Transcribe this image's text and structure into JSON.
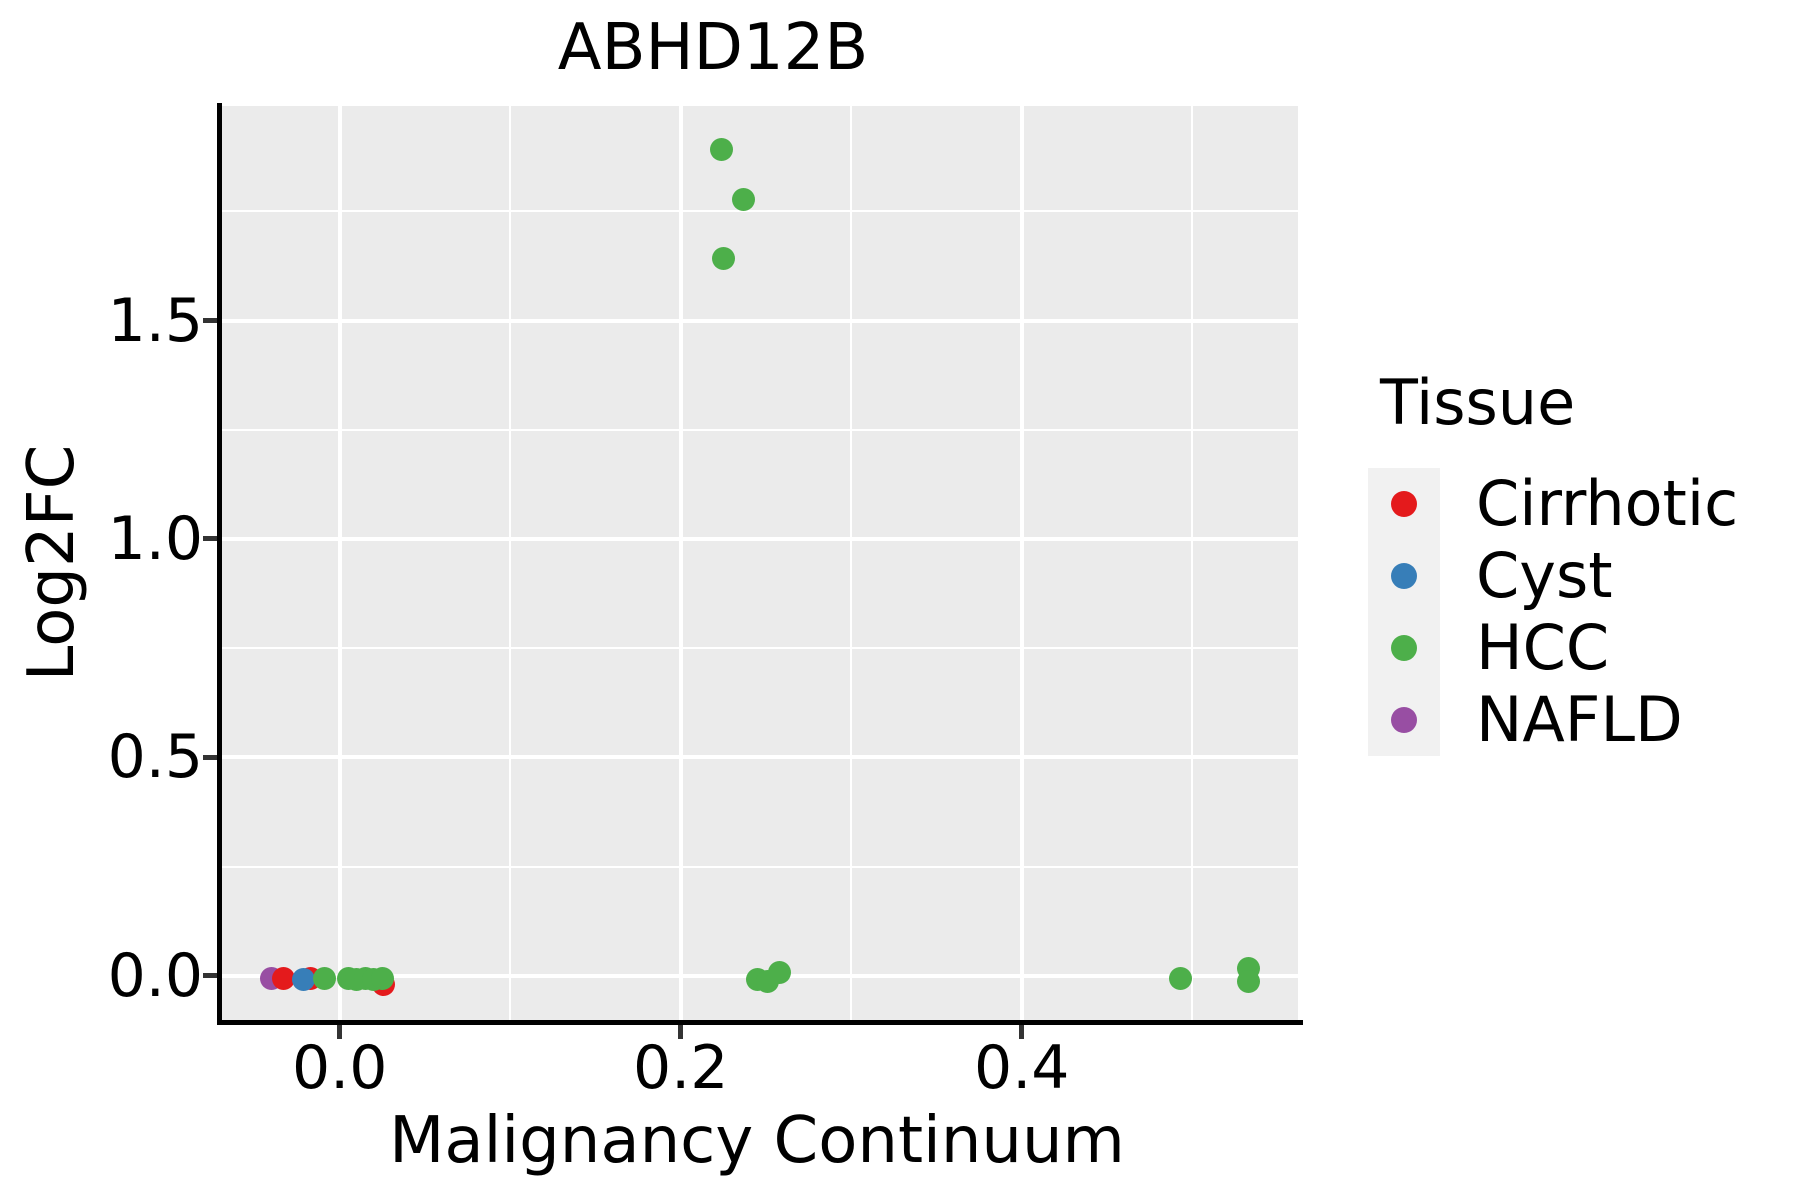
{
  "chart_data": {
    "type": "scatter",
    "title": "ABHD12B",
    "xlabel": "Malignancy Continuum",
    "ylabel": "Log2FC",
    "xlim": [
      -0.069,
      0.562
    ],
    "ylim": [
      -0.101,
      1.991
    ],
    "x_ticks": [
      0.0,
      0.2,
      0.4
    ],
    "x_tick_labels": [
      "0.0",
      "0.2",
      "0.4"
    ],
    "y_ticks": [
      0.0,
      0.5,
      1.0,
      1.5
    ],
    "y_tick_labels": [
      "0.0",
      "0.5",
      "1.0",
      "1.5"
    ],
    "x_minor": [
      0.1,
      0.3,
      0.5
    ],
    "y_minor": [
      0.25,
      0.75,
      1.25,
      1.75
    ],
    "grid": true,
    "legend_position": "right",
    "panel_background": "#EBEBEB",
    "grid_color": "#FFFFFF",
    "series": [
      {
        "name": "NAFLD",
        "color": "#984EA3",
        "points": [
          [
            -0.04,
            -0.007
          ]
        ]
      },
      {
        "name": "Cirrhotic",
        "color": "#E41A1C",
        "points": [
          [
            -0.033,
            -0.007
          ],
          [
            -0.017,
            -0.005
          ],
          [
            0.026,
            -0.02
          ]
        ]
      },
      {
        "name": "Cyst",
        "color": "#377EB8",
        "points": [
          [
            -0.021,
            -0.009
          ]
        ]
      },
      {
        "name": "HCC",
        "color": "#4DAF4A",
        "points": [
          [
            -0.009,
            -0.007
          ],
          [
            0.005,
            -0.007
          ],
          [
            0.01,
            -0.009
          ],
          [
            0.015,
            -0.007
          ],
          [
            0.02,
            -0.009
          ],
          [
            0.025,
            -0.007
          ],
          [
            0.224,
            1.892
          ],
          [
            0.225,
            1.643
          ],
          [
            0.237,
            1.776
          ],
          [
            0.245,
            -0.009
          ],
          [
            0.251,
            -0.014
          ],
          [
            0.258,
            0.007
          ],
          [
            0.493,
            -0.007
          ],
          [
            0.533,
            0.018
          ],
          [
            0.533,
            -0.014
          ]
        ]
      }
    ]
  },
  "legend": {
    "title": "Tissue",
    "entries": [
      {
        "label": "Cirrhotic",
        "color": "#E41A1C"
      },
      {
        "label": "Cyst",
        "color": "#377EB8"
      },
      {
        "label": "HCC",
        "color": "#4DAF4A"
      },
      {
        "label": "NAFLD",
        "color": "#984EA3"
      }
    ]
  }
}
